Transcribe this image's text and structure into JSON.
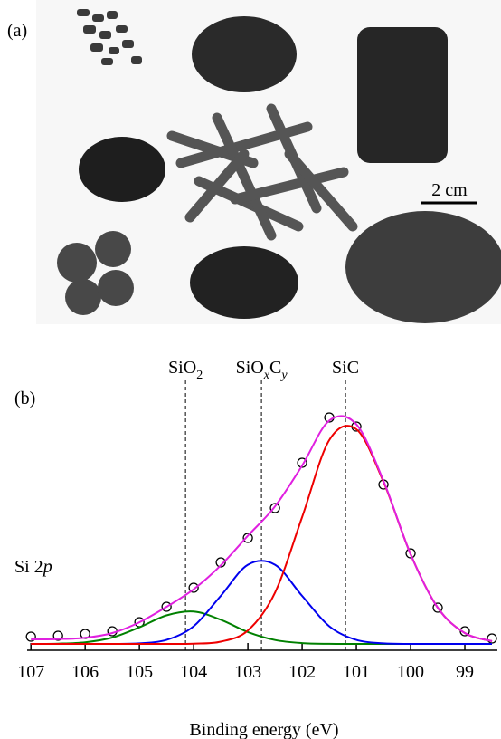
{
  "panel_a": {
    "label": "(a)",
    "scale_bar": "2 cm"
  },
  "chart_data": {
    "type": "line",
    "panel_label": "(b)",
    "x_label": "Binding energy (eV)",
    "peak_label": [
      {
        "t": "Si 2"
      },
      {
        "t": "p",
        "italic": true
      }
    ],
    "x": [
      107,
      106.5,
      106,
      105.5,
      105,
      104.5,
      104,
      103.5,
      103,
      102.5,
      102,
      101.5,
      101,
      100.5,
      100,
      99.5,
      99,
      98.5
    ],
    "series": [
      {
        "color": "#000000",
        "markers": true,
        "values": [
          8,
          9,
          11,
          14,
          24,
          41,
          62,
          90,
          117,
          150,
          200,
          250,
          240,
          176,
          100,
          40,
          14,
          6
        ]
      },
      {
        "color": "#008000",
        "values": [
          0,
          0.3,
          1.8,
          7,
          18.3,
          31.5,
          35.7,
          26.7,
          13.1,
          4.3,
          0.9,
          0.1,
          0,
          0,
          0,
          0,
          0,
          0
        ]
      },
      {
        "color": "#0000ee",
        "values": [
          0,
          0,
          0,
          0,
          0.6,
          4.4,
          19.5,
          53,
          87.4,
          87.4,
          53,
          19.5,
          4.4,
          0.6,
          0,
          0,
          0,
          0
        ]
      },
      {
        "color": "#ee0000",
        "values": [
          0,
          0,
          0,
          0,
          0,
          0,
          0.3,
          2.5,
          14.9,
          56.6,
          140,
          225,
          237,
          179,
          99,
          40,
          12,
          3
        ]
      },
      {
        "color": "#e020e0",
        "values": [
          5,
          5.3,
          6.8,
          12,
          23.9,
          40.9,
          60.3,
          86.7,
          119.4,
          151.8,
          196.9,
          246.6,
          242.4,
          180.1,
          99,
          40,
          12,
          3
        ]
      }
    ],
    "annotations": [
      {
        "x": 104.15,
        "label": [
          {
            "t": "SiO"
          },
          {
            "t": "2",
            "sub": true
          }
        ]
      },
      {
        "x": 102.75,
        "label": [
          {
            "t": "SiO"
          },
          {
            "t": "x",
            "sub": true,
            "italic": true
          },
          {
            "t": "C"
          },
          {
            "t": "y",
            "sub": true,
            "italic": true
          }
        ]
      },
      {
        "x": 101.2,
        "label": [
          {
            "t": "SiC"
          }
        ]
      }
    ],
    "xlim": [
      107.07,
      98.4
    ],
    "xticks": [
      107,
      106,
      105,
      104,
      103,
      102,
      101,
      100,
      99
    ],
    "ylim": [
      -7,
      291
    ]
  }
}
